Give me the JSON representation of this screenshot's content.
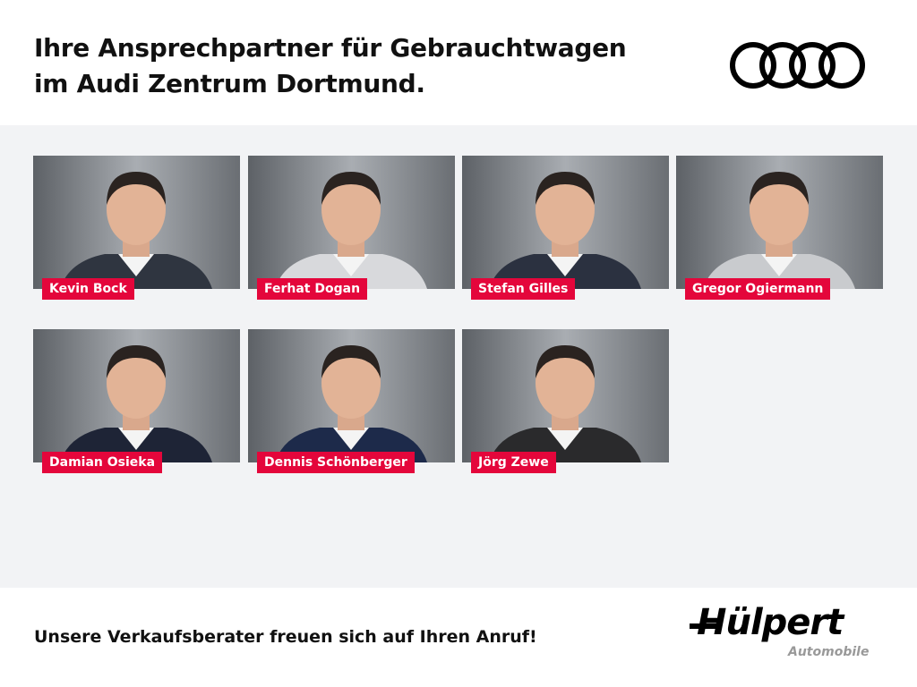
{
  "header": {
    "title_line1": "Ihre Ansprechpartner für Gebrauchtwagen",
    "title_line2": "im Audi Zentrum Dortmund.",
    "brand_logo": "Audi"
  },
  "contacts": [
    {
      "name": "Kevin Bock"
    },
    {
      "name": "Ferhat Dogan"
    },
    {
      "name": "Stefan Gilles"
    },
    {
      "name": "Gregor Ogiermann"
    },
    {
      "name": "Damian Osieka"
    },
    {
      "name": "Dennis Schönberger"
    },
    {
      "name": "Jörg Zewe"
    }
  ],
  "footer": {
    "slogan": "Unsere Verkaufsberater freuen sich auf Ihren Anruf!",
    "logo_main": "Hülpert",
    "logo_sub": "Automobile"
  },
  "colors": {
    "accent": "#e4063b",
    "background": "#f2f3f5"
  }
}
